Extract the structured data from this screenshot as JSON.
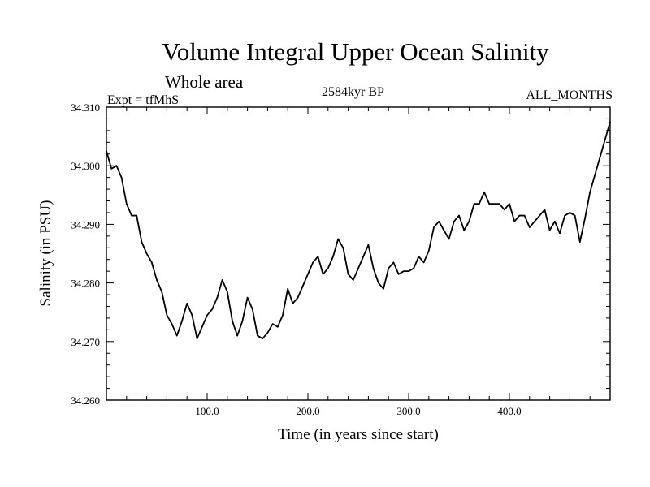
{
  "header": {
    "title": "Volume Integral Upper Ocean Salinity",
    "subtitle": "Whole area",
    "expt": "Expt = tfMhS",
    "epoch": "2584kyr BP",
    "months": "ALL_MONTHS"
  },
  "chart_data": {
    "type": "line",
    "title": "Volume Integral Upper Ocean Salinity",
    "xlabel": "Time (in years since start)",
    "ylabel": "Salinity (in PSU)",
    "xlim": [
      0,
      500
    ],
    "ylim": [
      34.26,
      34.31
    ],
    "x_ticks": [
      100,
      200,
      300,
      400
    ],
    "x_tick_labels": [
      "100.0",
      "200.0",
      "300.0",
      "400.0"
    ],
    "y_ticks": [
      34.26,
      34.27,
      34.28,
      34.29,
      34.3,
      34.31
    ],
    "y_tick_labels": [
      "34.260",
      "34.270",
      "34.280",
      "34.290",
      "34.300",
      "34.310"
    ],
    "grid": false,
    "line_color": "#000000",
    "series": [
      {
        "name": "Salinity",
        "x": [
          0,
          5,
          10,
          15,
          20,
          25,
          30,
          35,
          40,
          45,
          50,
          55,
          60,
          65,
          70,
          75,
          80,
          85,
          90,
          95,
          100,
          105,
          110,
          115,
          120,
          125,
          130,
          135,
          140,
          145,
          150,
          155,
          160,
          165,
          170,
          175,
          180,
          185,
          190,
          195,
          200,
          205,
          210,
          215,
          220,
          225,
          230,
          235,
          240,
          245,
          250,
          255,
          260,
          265,
          270,
          275,
          280,
          285,
          290,
          295,
          300,
          305,
          310,
          315,
          320,
          325,
          330,
          335,
          340,
          345,
          350,
          355,
          360,
          365,
          370,
          375,
          380,
          385,
          390,
          395,
          400,
          405,
          410,
          415,
          420,
          425,
          430,
          435,
          440,
          445,
          450,
          455,
          460,
          465,
          470,
          475,
          480,
          485,
          490,
          495,
          500
        ],
        "y": [
          34.3025,
          34.2995,
          34.3,
          34.298,
          34.2935,
          34.2915,
          34.2915,
          34.287,
          34.285,
          34.2835,
          34.2805,
          34.2785,
          34.2745,
          34.273,
          34.271,
          34.2735,
          34.2765,
          34.2745,
          34.2705,
          34.2725,
          34.2745,
          34.2755,
          34.2775,
          34.2805,
          34.2785,
          34.2735,
          34.271,
          34.2735,
          34.2775,
          34.2755,
          34.271,
          34.2705,
          34.2715,
          34.273,
          34.2725,
          34.2745,
          34.279,
          34.2765,
          34.2775,
          34.2795,
          34.2815,
          34.2835,
          34.2845,
          34.2815,
          34.2825,
          34.2845,
          34.2875,
          34.286,
          34.2815,
          34.2805,
          34.2825,
          34.2845,
          34.2865,
          34.2825,
          34.28,
          34.279,
          34.2825,
          34.2835,
          34.2815,
          34.282,
          34.282,
          34.2825,
          34.2845,
          34.2835,
          34.2855,
          34.2895,
          34.2905,
          34.289,
          34.2875,
          34.2905,
          34.2915,
          34.289,
          34.2905,
          34.2935,
          34.2935,
          34.2955,
          34.2935,
          34.2935,
          34.2935,
          34.2925,
          34.2935,
          34.2905,
          34.2915,
          34.2915,
          34.2895,
          34.2905,
          34.2915,
          34.2925,
          34.289,
          34.2905,
          34.2885,
          34.2915,
          34.292,
          34.2915,
          34.287,
          34.291,
          34.2955,
          34.2985,
          34.3015,
          34.3045,
          34.3075
        ]
      }
    ]
  }
}
